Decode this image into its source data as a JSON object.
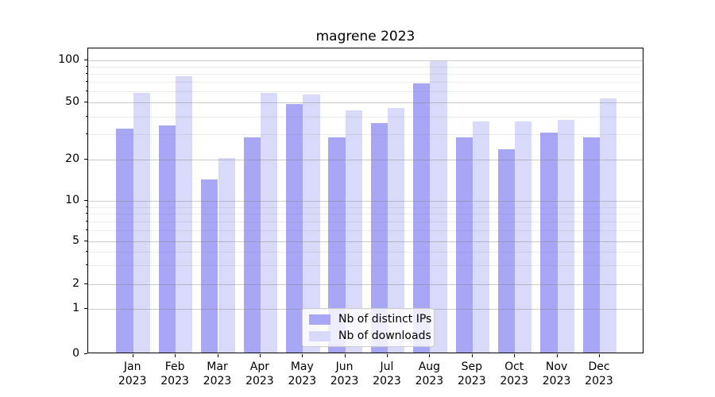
{
  "title": "magrene 2023",
  "y_axis": {
    "tick_labels": [
      "100",
      "50",
      "20",
      "10",
      "5",
      "2",
      "1",
      "0"
    ]
  },
  "x_axis": {
    "year": "2023",
    "months": [
      "Jan",
      "Feb",
      "Mar",
      "Apr",
      "May",
      "Jun",
      "Jul",
      "Aug",
      "Sep",
      "Oct",
      "Nov",
      "Dec"
    ]
  },
  "legend": {
    "items": [
      {
        "label": "Nb of distinct IPs",
        "color": "#a7a7f5"
      },
      {
        "label": "Nb of downloads",
        "color": "#d9d9fa"
      }
    ]
  },
  "chart_data": {
    "type": "bar",
    "title": "magrene 2023",
    "categories": [
      "Jan 2023",
      "Feb 2023",
      "Mar 2023",
      "Apr 2023",
      "May 2023",
      "Jun 2023",
      "Jul 2023",
      "Aug 2023",
      "Sep 2023",
      "Oct 2023",
      "Nov 2023",
      "Dec 2023"
    ],
    "series": [
      {
        "name": "Nb of distinct IPs",
        "color": "#a7a7f5",
        "values": [
          32,
          34,
          14,
          28,
          48,
          28,
          35,
          67,
          28,
          23,
          30,
          28
        ]
      },
      {
        "name": "Nb of downloads",
        "color": "#d9d9fa",
        "values": [
          57,
          75,
          20,
          57,
          56,
          43,
          45,
          96,
          36,
          36,
          37,
          52
        ]
      }
    ],
    "xlabel": "",
    "ylabel": "",
    "yscale": "log-like with zero baseline",
    "y_ticks": [
      0,
      1,
      2,
      5,
      10,
      20,
      50,
      100
    ],
    "y_minor_ticks": [
      3,
      4,
      6,
      7,
      8,
      9,
      30,
      40,
      60,
      70,
      80,
      90
    ],
    "ylim": [
      0,
      110
    ],
    "grid": true,
    "legend_position": "lower center"
  }
}
